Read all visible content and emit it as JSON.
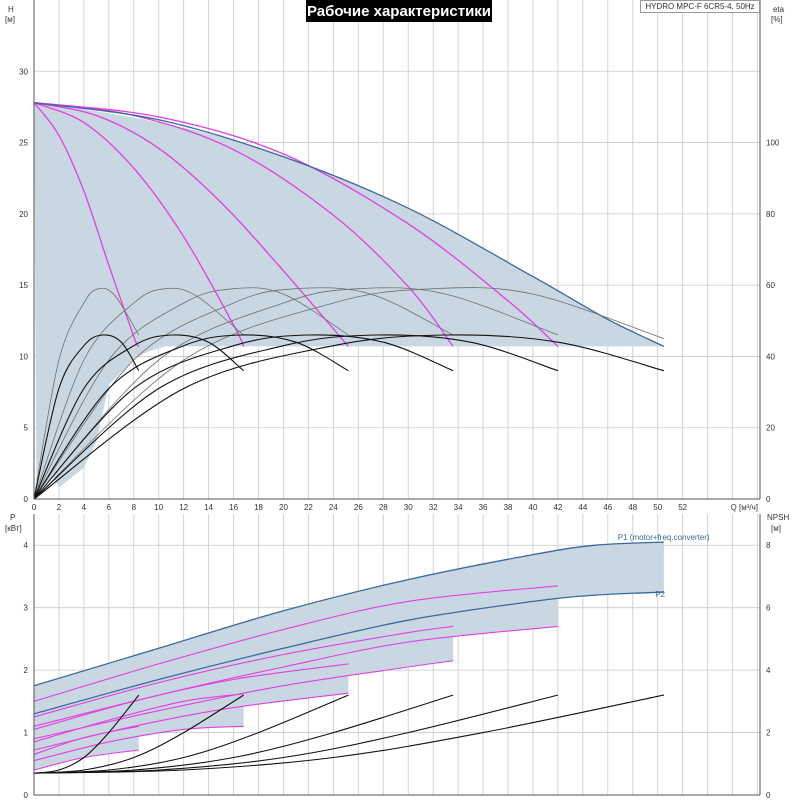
{
  "header": {
    "title": "Рабочие характеристики",
    "model": "HYDRO MPC-F 6CR5-4, 50Hz"
  },
  "colors": {
    "magenta": "#e23ee2",
    "dark_blue": "#3a6a9a",
    "black": "#111111",
    "gray": "#6f6f6f",
    "fill": "#c9d7e2",
    "grid": "#c9c9c9"
  },
  "chart_data": [
    {
      "type": "line",
      "panel": "top",
      "x_unit_label": "Q [м³/ч]",
      "y_left_label": "H",
      "y_left_unit": "[м]",
      "y_right_label": "eta",
      "y_right_unit": "[%]",
      "x_ticks": [
        0,
        2,
        4,
        6,
        8,
        10,
        12,
        14,
        16,
        18,
        20,
        22,
        24,
        26,
        28,
        30,
        32,
        34,
        36,
        38,
        40,
        42,
        44,
        46,
        48,
        50,
        52
      ],
      "y_left_ticks": [
        0,
        5,
        10,
        15,
        20,
        25,
        30
      ],
      "y_right_ticks": [
        0,
        20,
        40,
        60,
        80,
        100
      ],
      "xlim": [
        0,
        58.2
      ],
      "ylim_left": [
        0,
        35
      ],
      "ylim_right": [
        0,
        140
      ],
      "grid": true,
      "operating_region_fill": {
        "upper_Q": [
          0,
          5,
          10,
          15,
          20,
          25,
          30,
          35,
          40,
          45,
          50.5
        ],
        "upper_H": [
          27.8,
          27.2,
          26.4,
          25.4,
          24.0,
          22.4,
          20.4,
          18.1,
          15.6,
          13.1,
          10.7
        ],
        "lower_H": 10.7,
        "left_Q": [
          0.2,
          1.5,
          2,
          4,
          5,
          6,
          8,
          9,
          10.5
        ],
        "left_H": [
          0.4,
          1.6,
          0.8,
          2.2,
          4.0,
          8.0,
          9.8,
          10.3,
          10.7
        ]
      },
      "series": [
        {
          "group": "head",
          "color": "#e23ee2",
          "Q": [
            0,
            2,
            4,
            6,
            8,
            8.4
          ],
          "H": [
            27.8,
            25.5,
            21.6,
            16.4,
            11.4,
            10.7
          ]
        },
        {
          "group": "head",
          "color": "#e23ee2",
          "Q": [
            0,
            4,
            8,
            12,
            16,
            16.8
          ],
          "H": [
            27.8,
            26.4,
            23.2,
            18.4,
            12.2,
            10.7
          ]
        },
        {
          "group": "head",
          "color": "#e23ee2",
          "Q": [
            0,
            5,
            10,
            15,
            20,
            25.2
          ],
          "H": [
            27.8,
            26.9,
            24.6,
            20.8,
            16.0,
            10.7
          ]
        },
        {
          "group": "head",
          "color": "#e23ee2",
          "Q": [
            0,
            8,
            16,
            24,
            30,
            33.6
          ],
          "H": [
            27.8,
            26.9,
            24.5,
            19.9,
            14.9,
            10.7
          ]
        },
        {
          "group": "head",
          "color": "#e23ee2",
          "Q": [
            0,
            10,
            20,
            30,
            38,
            42
          ],
          "H": [
            27.8,
            26.8,
            24.2,
            19.3,
            13.9,
            10.7
          ]
        },
        {
          "group": "head",
          "color": "#3a6a9a",
          "Q": [
            0,
            10,
            20,
            30,
            40,
            46,
            50.5
          ],
          "H": [
            27.8,
            26.6,
            24.0,
            20.4,
            15.6,
            12.6,
            10.7
          ]
        },
        {
          "group": "eta",
          "color": "#6f6f6f",
          "Q": [
            0,
            2,
            4,
            5.2,
            6.5,
            8.4
          ],
          "eta": [
            0,
            39,
            55,
            59,
            57,
            46
          ]
        },
        {
          "group": "eta",
          "color": "#6f6f6f",
          "Q": [
            0,
            4,
            8,
            10.5,
            13,
            16.8
          ],
          "eta": [
            0,
            39,
            55,
            59,
            57,
            46
          ]
        },
        {
          "group": "eta",
          "color": "#6f6f6f",
          "Q": [
            0,
            6,
            12,
            16,
            20,
            25.2
          ],
          "eta": [
            0,
            39,
            55,
            59,
            57.5,
            46
          ]
        },
        {
          "group": "eta",
          "color": "#6f6f6f",
          "Q": [
            0,
            8,
            16,
            21,
            27,
            33.6
          ],
          "eta": [
            0,
            39,
            55,
            59,
            57.5,
            46
          ]
        },
        {
          "group": "eta",
          "color": "#6f6f6f",
          "Q": [
            0,
            10,
            20,
            26,
            33,
            42
          ],
          "eta": [
            0,
            39,
            55,
            59,
            57.5,
            46
          ]
        },
        {
          "group": "eta",
          "color": "#6f6f6f",
          "Q": [
            0,
            12,
            24,
            32,
            40,
            50.5
          ],
          "eta": [
            0,
            39,
            55,
            59,
            57.5,
            45
          ]
        },
        {
          "group": "eta",
          "color": "#111111",
          "Q": [
            0,
            2,
            4,
            5.5,
            7,
            8.4
          ],
          "eta": [
            0,
            31,
            43,
            46,
            44,
            36
          ]
        },
        {
          "group": "eta",
          "color": "#111111",
          "Q": [
            0,
            4,
            8,
            11,
            14,
            16.8
          ],
          "eta": [
            0,
            31,
            43,
            46,
            44,
            36
          ]
        },
        {
          "group": "eta",
          "color": "#111111",
          "Q": [
            0,
            6,
            12,
            16.5,
            21,
            25.2
          ],
          "eta": [
            0,
            31,
            43,
            46,
            44,
            36
          ]
        },
        {
          "group": "eta",
          "color": "#111111",
          "Q": [
            0,
            8,
            16,
            22,
            28,
            33.6
          ],
          "eta": [
            0,
            31,
            43,
            46,
            44,
            36
          ]
        },
        {
          "group": "eta",
          "color": "#111111",
          "Q": [
            0,
            10,
            20,
            27.5,
            35,
            42
          ],
          "eta": [
            0,
            31,
            43,
            46,
            44,
            36
          ]
        },
        {
          "group": "eta",
          "color": "#111111",
          "Q": [
            0,
            12,
            24,
            33,
            42,
            50.5
          ],
          "eta": [
            0,
            31,
            43,
            46,
            44,
            36
          ]
        }
      ]
    },
    {
      "type": "line",
      "panel": "bottom",
      "y_left_label": "P",
      "y_left_unit": "[кВт]",
      "y_right_label": "NPSH",
      "y_right_unit": "[м]",
      "y_left_ticks": [
        0,
        1,
        2,
        3,
        4
      ],
      "y_right_ticks": [
        0,
        2,
        4,
        6,
        8
      ],
      "xlim": [
        0,
        58.2
      ],
      "ylim_left": [
        0,
        4.5
      ],
      "ylim_right": [
        0,
        9
      ],
      "grid": true,
      "annotations": [
        {
          "text": "P1 (motor+freq.converter)",
          "Q": 46.8,
          "P": 4.08
        },
        {
          "text": "P2",
          "Q": 49.8,
          "P": 3.17
        }
      ],
      "series": [
        {
          "group": "P1",
          "color": "#3a6a9a",
          "Q": [
            0,
            10,
            20,
            30,
            40,
            45,
            50.5
          ],
          "P": [
            1.75,
            2.35,
            2.95,
            3.45,
            3.85,
            4.0,
            4.05
          ]
        },
        {
          "group": "P2",
          "color": "#3a6a9a",
          "Q": [
            0,
            10,
            20,
            30,
            40,
            45,
            50.5
          ],
          "P": [
            1.3,
            1.85,
            2.35,
            2.8,
            3.1,
            3.2,
            3.25
          ]
        },
        {
          "group": "P1-partial",
          "color": "#e23ee2",
          "Q": [
            0,
            10,
            20,
            30,
            42
          ],
          "P": [
            1.5,
            2.1,
            2.65,
            3.1,
            3.35
          ]
        },
        {
          "group": "P1-partial",
          "color": "#e23ee2",
          "Q": [
            0,
            10,
            20,
            30,
            33.6
          ],
          "P": [
            1.25,
            1.8,
            2.25,
            2.6,
            2.7
          ]
        },
        {
          "group": "P1-partial",
          "color": "#e23ee2",
          "Q": [
            0,
            8,
            16,
            25.2
          ],
          "P": [
            1.05,
            1.5,
            1.85,
            2.1
          ]
        },
        {
          "group": "P1-partial",
          "color": "#e23ee2",
          "Q": [
            0,
            6,
            12,
            16.8
          ],
          "P": [
            0.85,
            1.2,
            1.5,
            1.62
          ]
        },
        {
          "group": "P1-partial",
          "color": "#e23ee2",
          "Q": [
            0,
            4,
            8.4
          ],
          "P": [
            0.65,
            0.92,
            1.1
          ]
        },
        {
          "group": "P2-partial",
          "color": "#e23ee2",
          "Q": [
            0,
            10,
            20,
            30,
            42
          ],
          "P": [
            1.1,
            1.6,
            2.05,
            2.45,
            2.7
          ]
        },
        {
          "group": "P2-partial",
          "color": "#e23ee2",
          "Q": [
            0,
            10,
            20,
            30,
            33.6
          ],
          "P": [
            0.9,
            1.35,
            1.75,
            2.05,
            2.15
          ]
        },
        {
          "group": "P2-partial",
          "color": "#e23ee2",
          "Q": [
            0,
            8,
            16,
            25.2
          ],
          "P": [
            0.72,
            1.1,
            1.4,
            1.63
          ]
        },
        {
          "group": "P2-partial",
          "color": "#e23ee2",
          "Q": [
            0,
            6,
            12,
            16.8
          ],
          "P": [
            0.55,
            0.85,
            1.05,
            1.1
          ]
        },
        {
          "group": "P2-partial",
          "color": "#e23ee2",
          "Q": [
            0,
            4,
            8.4
          ],
          "P": [
            0.4,
            0.6,
            0.72
          ]
        },
        {
          "group": "NPSH",
          "color": "#111111",
          "Q": [
            0,
            2,
            4,
            6,
            8.4
          ],
          "NPSH": [
            0.7,
            0.8,
            1.2,
            2.0,
            3.2
          ]
        },
        {
          "group": "NPSH",
          "color": "#111111",
          "Q": [
            0,
            4,
            8,
            12,
            16.8
          ],
          "NPSH": [
            0.7,
            0.8,
            1.2,
            2.0,
            3.2
          ]
        },
        {
          "group": "NPSH",
          "color": "#111111",
          "Q": [
            0,
            6,
            12,
            18,
            25.2
          ],
          "NPSH": [
            0.7,
            0.8,
            1.2,
            2.0,
            3.2
          ]
        },
        {
          "group": "NPSH",
          "color": "#111111",
          "Q": [
            0,
            8,
            16,
            24,
            33.6
          ],
          "NPSH": [
            0.7,
            0.8,
            1.2,
            2.0,
            3.2
          ]
        },
        {
          "group": "NPSH",
          "color": "#111111",
          "Q": [
            0,
            10,
            20,
            30,
            42
          ],
          "NPSH": [
            0.7,
            0.8,
            1.2,
            2.0,
            3.2
          ]
        },
        {
          "group": "NPSH",
          "color": "#111111",
          "Q": [
            0,
            12,
            24,
            36,
            50.5
          ],
          "NPSH": [
            0.7,
            0.8,
            1.2,
            2.0,
            3.2
          ]
        }
      ]
    }
  ]
}
